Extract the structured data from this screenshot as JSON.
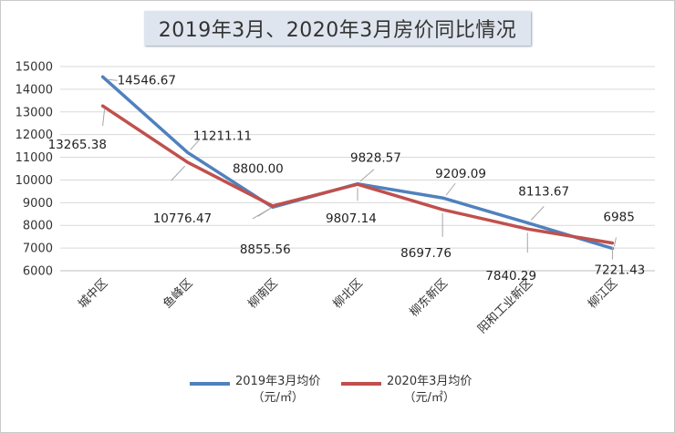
{
  "chart_data": {
    "type": "line",
    "title": "2019年3月、2020年3月房价同比情况",
    "categories": [
      "城中区",
      "鱼峰区",
      "柳南区",
      "柳北区",
      "柳东新区",
      "阳和工业新区",
      "柳江区"
    ],
    "series": [
      {
        "name": "2019年3月均价（元/㎡）",
        "name_line1": "2019年3月均价",
        "name_line2": "（元/㎡）",
        "color": "#4f81bd",
        "values": [
          14546.67,
          11211.11,
          8800.0,
          9828.57,
          9209.09,
          8113.67,
          6985
        ],
        "labels": [
          "14546.67",
          "11211.11",
          "8800.00",
          "9828.57",
          "9209.09",
          "8113.67",
          "6985"
        ]
      },
      {
        "name": "2020年3月均价（元/㎡）",
        "name_line1": "2020年3月均价",
        "name_line2": "（元/㎡）",
        "color": "#c0504d",
        "values": [
          13265.38,
          10776.47,
          8855.56,
          9807.14,
          8697.76,
          7840.29,
          7221.43
        ],
        "labels": [
          "13265.38",
          "10776.47",
          "8855.56",
          "9807.14",
          "8697.76",
          "7840.29",
          "7221.43"
        ]
      }
    ],
    "ylim": [
      6000,
      15000
    ],
    "yticks": [
      "6000",
      "7000",
      "8000",
      "9000",
      "10000",
      "11000",
      "12000",
      "13000",
      "14000",
      "15000"
    ],
    "xlabel": "",
    "ylabel": "",
    "grid": true,
    "legend": "bottom"
  }
}
